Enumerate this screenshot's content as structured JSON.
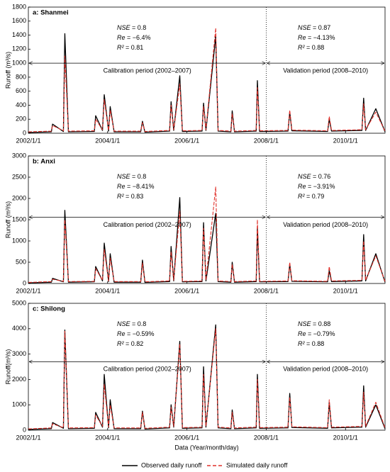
{
  "chart_data": [
    {
      "type": "line",
      "title": "a: Shanmei",
      "y_label": "Runoff (m³/s)",
      "xlim": [
        "2002/1/1",
        "2010/12/31"
      ],
      "xticks": [
        "2002/1/1",
        "2004/1/1",
        "2006/1/1",
        "2008/1/1",
        "2010/1/1"
      ],
      "ylim": [
        0,
        1800
      ],
      "yticks": [
        0,
        200,
        400,
        600,
        800,
        1000,
        1200,
        1400,
        1600,
        1800
      ],
      "period_split": "2008/1/1",
      "arrow_level": 1000,
      "periods": [
        {
          "label": "Calibration period (2002–2007)",
          "stats": [
            {
              "name": "NSE",
              "text": "= 0.8"
            },
            {
              "name": "Re",
              "text": "= −6.4%"
            },
            {
              "name": "R²",
              "text": "= 0.81"
            }
          ]
        },
        {
          "label": "Validation period (2008–2010)",
          "stats": [
            {
              "name": "NSE",
              "text": "= 0.87"
            },
            {
              "name": "Re",
              "text": "= −4.13%"
            },
            {
              "name": "R²",
              "text": "= 0.88"
            }
          ]
        }
      ],
      "x": [
        "2002/1/1",
        "2002/8/1",
        "2002/8/12",
        "2002/11/20",
        "2002/12/3",
        "2003/1/5",
        "2003/9/1",
        "2003/9/13",
        "2003/11/15",
        "2003/12/1",
        "2004/1/10",
        "2004/1/25",
        "2004/3/1",
        "2004/11/1",
        "2004/11/17",
        "2004/12/10",
        "2005/7/25",
        "2005/8/8",
        "2005/9/1",
        "2005/10/27",
        "2005/11/20",
        "2006/5/20",
        "2006/6/3",
        "2006/6/25",
        "2006/9/23",
        "2006/10/15",
        "2007/2/10",
        "2007/2/22",
        "2007/3/15",
        "2007/10/1",
        "2007/10/12",
        "2007/11/1",
        "2008/7/20",
        "2008/8/5",
        "2008/8/25",
        "2009/7/20",
        "2009/8/4",
        "2009/8/25",
        "2010/6/1",
        "2010/6/17",
        "2010/7/5",
        "2010/10/7",
        "2010/12/31"
      ],
      "series": [
        {
          "name": "Observed daily runoff",
          "color": "#000000",
          "dashed": false,
          "values": [
            10,
            20,
            130,
            25,
            1420,
            20,
            25,
            250,
            40,
            550,
            30,
            380,
            20,
            20,
            170,
            15,
            30,
            450,
            40,
            820,
            25,
            30,
            430,
            40,
            1380,
            30,
            20,
            320,
            20,
            30,
            750,
            25,
            30,
            300,
            35,
            25,
            200,
            30,
            40,
            500,
            40,
            350,
            20
          ]
        },
        {
          "name": "Simulated daily runoff",
          "color": "#e0302a",
          "dashed": true,
          "values": [
            20,
            30,
            110,
            35,
            1100,
            30,
            35,
            200,
            50,
            480,
            40,
            330,
            30,
            30,
            150,
            25,
            40,
            400,
            50,
            700,
            35,
            40,
            380,
            50,
            1500,
            40,
            30,
            280,
            30,
            40,
            650,
            35,
            40,
            330,
            45,
            35,
            240,
            40,
            50,
            420,
            50,
            300,
            30
          ]
        }
      ]
    },
    {
      "type": "line",
      "title": "b: Anxi",
      "y_label": "Runoff (m³/s)",
      "xlim": [
        "2002/1/1",
        "2010/12/31"
      ],
      "xticks": [
        "2002/1/1",
        "2004/1/1",
        "2006/1/1",
        "2008/1/1",
        "2010/1/1"
      ],
      "ylim": [
        0,
        3000
      ],
      "yticks": [
        0,
        500,
        1000,
        1500,
        2000,
        2500,
        3000
      ],
      "period_split": "2008/1/1",
      "arrow_level": 1560,
      "periods": [
        {
          "label": "Calibration period (2002–2007)",
          "stats": [
            {
              "name": "NSE",
              "text": "= 0.8"
            },
            {
              "name": "Re",
              "text": "= −8.41%"
            },
            {
              "name": "R²",
              "text": "= 0.83"
            }
          ]
        },
        {
          "label": "Validation period (2008–2010)",
          "stats": [
            {
              "name": "NSE",
              "text": "= 0.76"
            },
            {
              "name": "Re",
              "text": "= −3.91%"
            },
            {
              "name": "R²",
              "text": "= 0.79"
            }
          ]
        }
      ],
      "x": [
        "2002/1/1",
        "2002/8/1",
        "2002/8/12",
        "2002/11/20",
        "2002/12/3",
        "2003/1/5",
        "2003/9/1",
        "2003/9/13",
        "2003/11/15",
        "2003/12/1",
        "2004/1/10",
        "2004/1/25",
        "2004/3/1",
        "2004/11/1",
        "2004/11/17",
        "2004/12/10",
        "2005/7/25",
        "2005/8/8",
        "2005/9/1",
        "2005/10/27",
        "2005/11/20",
        "2006/5/20",
        "2006/6/3",
        "2006/6/25",
        "2006/9/23",
        "2006/10/15",
        "2007/2/10",
        "2007/2/22",
        "2007/3/15",
        "2007/10/1",
        "2007/10/12",
        "2007/11/1",
        "2008/7/20",
        "2008/8/5",
        "2008/8/25",
        "2009/7/20",
        "2009/8/4",
        "2009/8/25",
        "2010/6/1",
        "2010/6/17",
        "2010/7/5",
        "2010/10/7",
        "2010/12/31"
      ],
      "series": [
        {
          "name": "Observed daily runoff",
          "color": "#000000",
          "dashed": false,
          "values": [
            15,
            30,
            120,
            40,
            1720,
            30,
            40,
            400,
            60,
            950,
            45,
            700,
            30,
            30,
            550,
            25,
            45,
            870,
            60,
            2020,
            40,
            45,
            1430,
            60,
            1650,
            45,
            30,
            500,
            30,
            45,
            1300,
            40,
            45,
            450,
            50,
            40,
            300,
            45,
            60,
            1150,
            60,
            700,
            30
          ]
        },
        {
          "name": "Simulated daily runoff",
          "color": "#e0302a",
          "dashed": true,
          "values": [
            25,
            45,
            100,
            50,
            1500,
            45,
            50,
            350,
            75,
            800,
            60,
            600,
            45,
            45,
            480,
            40,
            60,
            750,
            75,
            1700,
            50,
            60,
            1300,
            75,
            2270,
            60,
            45,
            450,
            45,
            60,
            1500,
            50,
            60,
            500,
            65,
            50,
            400,
            60,
            75,
            1000,
            75,
            650,
            45
          ]
        }
      ]
    },
    {
      "type": "line",
      "title": "c: Shilong",
      "y_label": "Runoff(m³/s)",
      "x_label": "Data (Year/month/day)",
      "xlim": [
        "2002/1/1",
        "2010/12/31"
      ],
      "xticks": [
        "2002/1/1",
        "2004/1/1",
        "2006/1/1",
        "2008/1/1",
        "2010/1/1"
      ],
      "ylim": [
        0,
        5000
      ],
      "yticks": [
        0,
        1000,
        2000,
        3000,
        4000,
        5000
      ],
      "period_split": "2008/1/1",
      "arrow_level": 2700,
      "periods": [
        {
          "label": "Calibration period (2002–2007)",
          "stats": [
            {
              "name": "NSE",
              "text": "= 0.8"
            },
            {
              "name": "Re",
              "text": "= −0.59%"
            },
            {
              "name": "R²",
              "text": "= 0.82"
            }
          ]
        },
        {
          "label": "Validation period (2008–2010)",
          "stats": [
            {
              "name": "NSE",
              "text": "= 0.88"
            },
            {
              "name": "Re",
              "text": "= −0.79%"
            },
            {
              "name": "R²",
              "text": "= 0.88"
            }
          ]
        }
      ],
      "x": [
        "2002/1/1",
        "2002/8/1",
        "2002/8/12",
        "2002/11/20",
        "2002/12/3",
        "2003/1/5",
        "2003/9/1",
        "2003/9/13",
        "2003/11/15",
        "2003/12/1",
        "2004/1/10",
        "2004/1/25",
        "2004/3/1",
        "2004/11/1",
        "2004/11/17",
        "2004/12/10",
        "2005/7/25",
        "2005/8/8",
        "2005/9/1",
        "2005/10/27",
        "2005/11/20",
        "2006/5/20",
        "2006/6/3",
        "2006/6/25",
        "2006/9/23",
        "2006/10/15",
        "2007/2/10",
        "2007/2/22",
        "2007/3/15",
        "2007/10/1",
        "2007/10/12",
        "2007/11/1",
        "2008/7/20",
        "2008/8/5",
        "2008/8/25",
        "2009/7/20",
        "2009/8/4",
        "2009/8/25",
        "2010/6/1",
        "2010/6/17",
        "2010/7/5",
        "2010/10/7",
        "2010/12/31"
      ],
      "series": [
        {
          "name": "Observed daily runoff",
          "color": "#000000",
          "dashed": false,
          "values": [
            30,
            60,
            300,
            75,
            3950,
            60,
            75,
            700,
            120,
            2200,
            90,
            1200,
            60,
            60,
            750,
            45,
            90,
            1000,
            120,
            3500,
            75,
            90,
            2500,
            120,
            4150,
            90,
            60,
            800,
            60,
            90,
            2200,
            75,
            90,
            1450,
            105,
            75,
            1100,
            90,
            120,
            1750,
            120,
            1000,
            60
          ]
        },
        {
          "name": "Simulated daily runoff",
          "color": "#e0302a",
          "dashed": true,
          "values": [
            50,
            90,
            250,
            100,
            3900,
            90,
            100,
            600,
            150,
            1800,
            120,
            1000,
            90,
            90,
            700,
            75,
            120,
            900,
            150,
            3400,
            100,
            120,
            2200,
            150,
            4000,
            120,
            90,
            700,
            90,
            120,
            2000,
            100,
            120,
            1300,
            135,
            100,
            1200,
            120,
            150,
            1500,
            150,
            1100,
            90
          ]
        }
      ]
    }
  ]
}
